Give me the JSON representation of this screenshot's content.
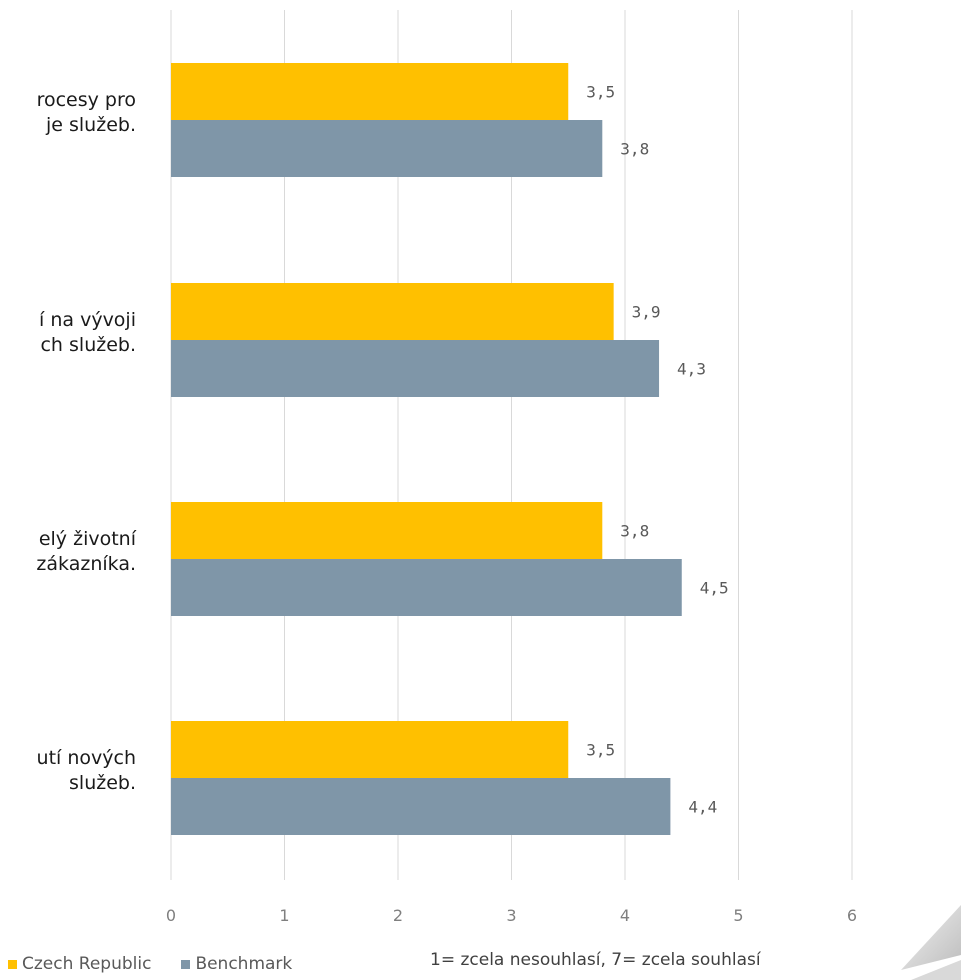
{
  "chart_data": {
    "type": "bar",
    "orientation": "horizontal",
    "categories": [
      "...procesy pro ...je služeb.",
      "...í na vývoji ...ch služeb.",
      "...elý životní ...zákazníka.",
      "...utí nových služeb."
    ],
    "category_lines": [
      [
        "rocesy pro",
        "je služeb."
      ],
      [
        "í na vývoji",
        "ch služeb."
      ],
      [
        "elý životní",
        "zákazníka."
      ],
      [
        "utí nových",
        "služeb."
      ]
    ],
    "series": [
      {
        "name": "Czech Republic",
        "color": "#FFC000",
        "values": [
          3.5,
          3.9,
          3.8,
          3.5
        ],
        "labels": [
          "3,5",
          "3,9",
          "3,8",
          "3,5"
        ]
      },
      {
        "name": "Benchmark",
        "color": "#7F96A8",
        "values": [
          3.8,
          4.3,
          4.5,
          4.4
        ],
        "labels": [
          "3,8",
          "4,3",
          "4,5",
          "4,4"
        ]
      }
    ],
    "xlim": [
      0,
      6
    ],
    "xticks": [
      "0",
      "1",
      "2",
      "3",
      "4",
      "5",
      "6"
    ],
    "grid": true,
    "legend_position": "bottom-left",
    "note": "1= zcela nesouhlasí, 7= zcela souhlasí"
  }
}
